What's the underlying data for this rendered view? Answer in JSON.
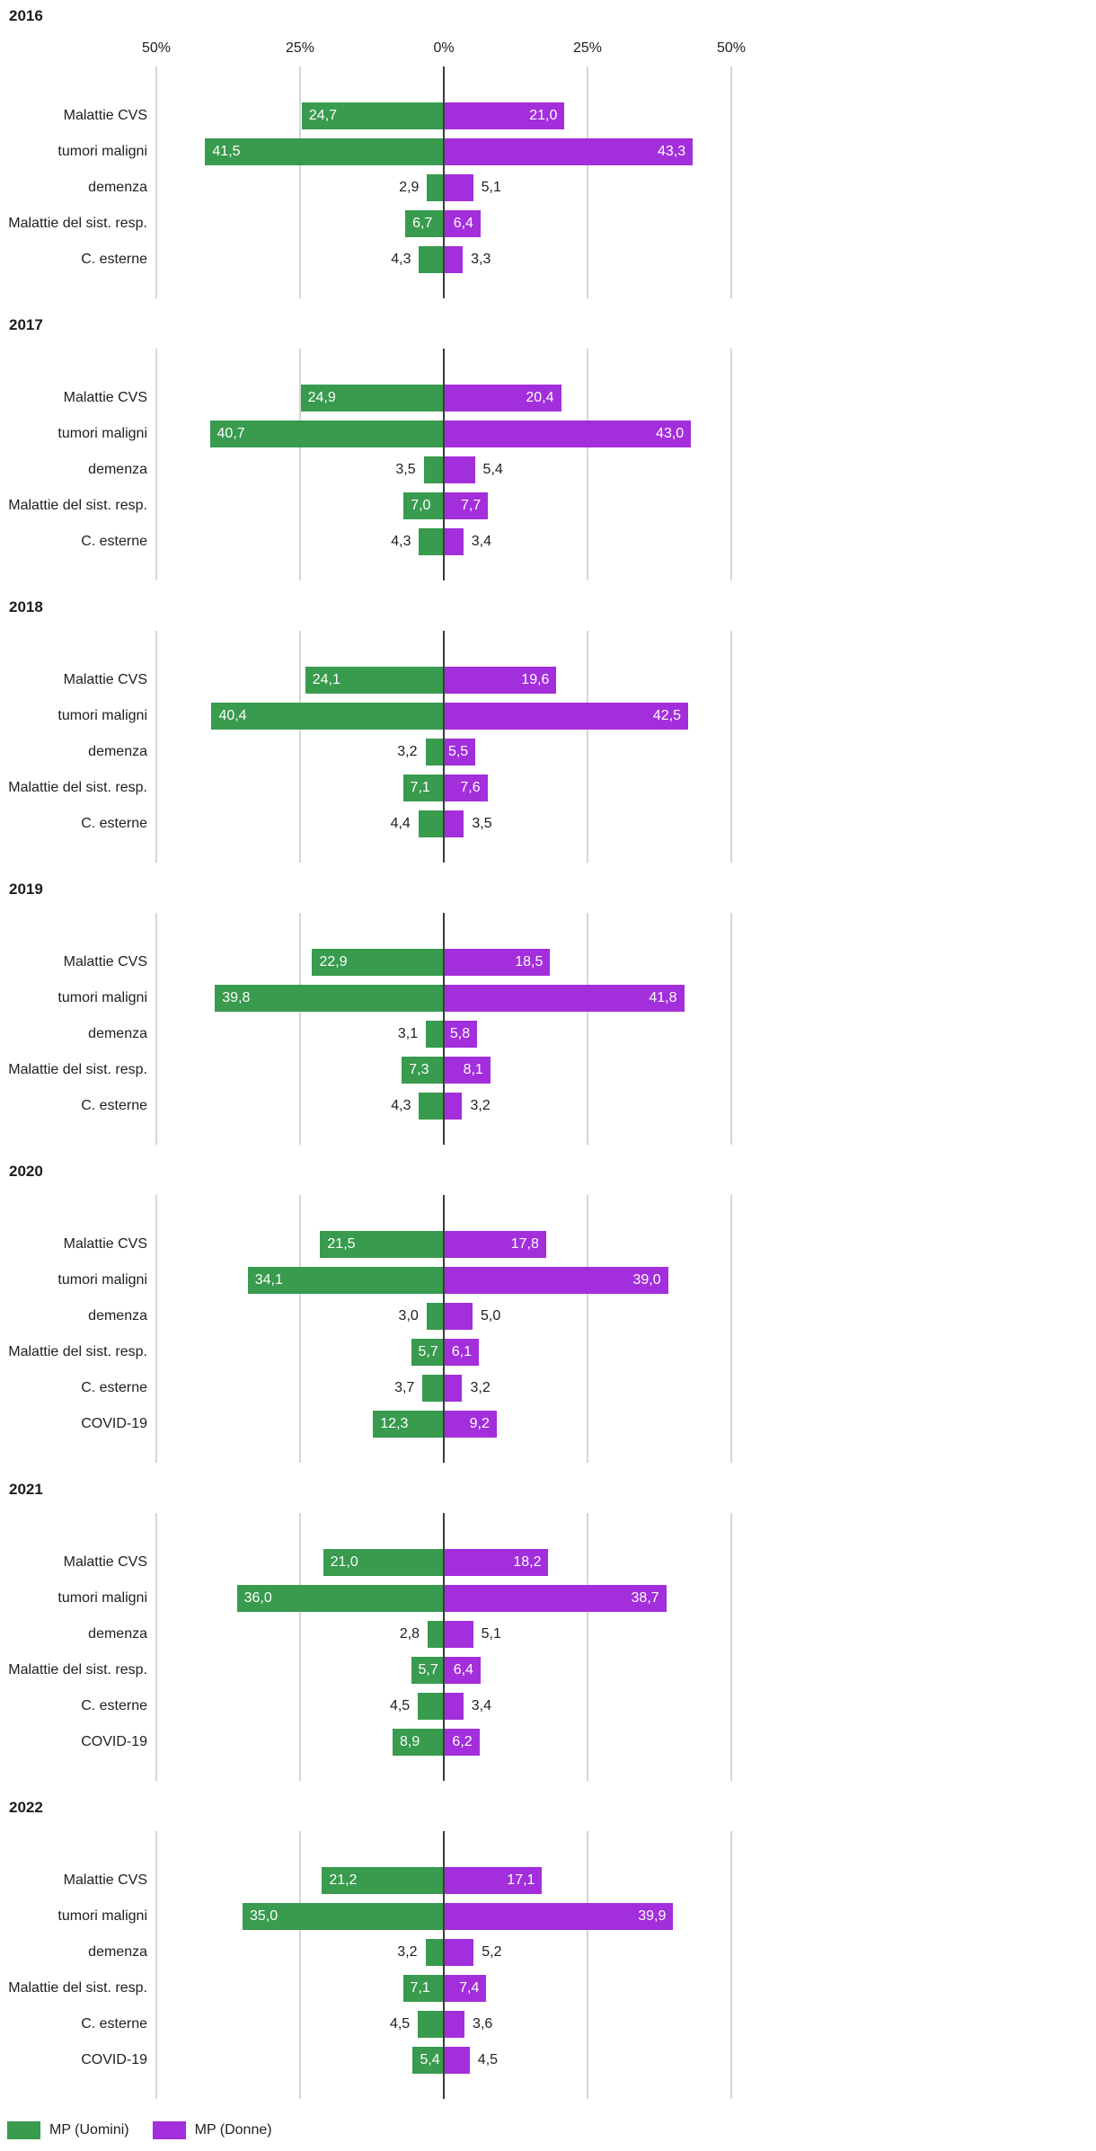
{
  "colors": {
    "men": "#389B4E",
    "women": "#A32EDB",
    "gridline": "#d6d6d6",
    "center_axis": "#3a3a3a"
  },
  "axis": {
    "tick_labels": [
      "50%",
      "25%",
      "0%",
      "25%",
      "50%"
    ],
    "tick_values": [
      -50,
      -25,
      0,
      25,
      50
    ]
  },
  "legend": {
    "items": [
      {
        "label": "MP (Uomini)",
        "color": "#389B4E",
        "series": "men"
      },
      {
        "label": "MP (Donne)",
        "color": "#A32EDB",
        "series": "women"
      }
    ]
  },
  "chart_data": [
    {
      "type": "bar",
      "variant": "diverging-horizontal",
      "title": "2016",
      "xlim": [
        -50,
        50
      ],
      "show_axis_labels": true,
      "categories": [
        "Malattie CVS",
        "tumori maligni",
        "demenza",
        "Malattie del sist. resp.",
        "C. esterne"
      ],
      "series": [
        {
          "name": "MP (Uomini)",
          "values": [
            24.7,
            41.5,
            2.9,
            6.7,
            4.3
          ]
        },
        {
          "name": "MP (Donne)",
          "values": [
            21.0,
            43.3,
            5.1,
            6.4,
            3.3
          ]
        }
      ]
    },
    {
      "type": "bar",
      "variant": "diverging-horizontal",
      "title": "2017",
      "xlim": [
        -50,
        50
      ],
      "show_axis_labels": false,
      "categories": [
        "Malattie CVS",
        "tumori maligni",
        "demenza",
        "Malattie del sist. resp.",
        "C. esterne"
      ],
      "series": [
        {
          "name": "MP (Uomini)",
          "values": [
            24.9,
            40.7,
            3.5,
            7.0,
            4.3
          ]
        },
        {
          "name": "MP (Donne)",
          "values": [
            20.4,
            43.0,
            5.4,
            7.7,
            3.4
          ]
        }
      ]
    },
    {
      "type": "bar",
      "variant": "diverging-horizontal",
      "title": "2018",
      "xlim": [
        -50,
        50
      ],
      "show_axis_labels": false,
      "categories": [
        "Malattie CVS",
        "tumori maligni",
        "demenza",
        "Malattie del sist. resp.",
        "C. esterne"
      ],
      "series": [
        {
          "name": "MP (Uomini)",
          "values": [
            24.1,
            40.4,
            3.2,
            7.1,
            4.4
          ]
        },
        {
          "name": "MP (Donne)",
          "values": [
            19.6,
            42.5,
            5.5,
            7.6,
            3.5
          ]
        }
      ]
    },
    {
      "type": "bar",
      "variant": "diverging-horizontal",
      "title": "2019",
      "xlim": [
        -50,
        50
      ],
      "show_axis_labels": false,
      "categories": [
        "Malattie CVS",
        "tumori maligni",
        "demenza",
        "Malattie del sist. resp.",
        "C. esterne"
      ],
      "series": [
        {
          "name": "MP (Uomini)",
          "values": [
            22.9,
            39.8,
            3.1,
            7.3,
            4.3
          ]
        },
        {
          "name": "MP (Donne)",
          "values": [
            18.5,
            41.8,
            5.8,
            8.1,
            3.2
          ]
        }
      ]
    },
    {
      "type": "bar",
      "variant": "diverging-horizontal",
      "title": "2020",
      "xlim": [
        -50,
        50
      ],
      "show_axis_labels": false,
      "categories": [
        "Malattie CVS",
        "tumori maligni",
        "demenza",
        "Malattie del sist. resp.",
        "C. esterne",
        "COVID-19"
      ],
      "series": [
        {
          "name": "MP (Uomini)",
          "values": [
            21.5,
            34.1,
            3.0,
            5.7,
            3.7,
            12.3
          ]
        },
        {
          "name": "MP (Donne)",
          "values": [
            17.8,
            39.0,
            5.0,
            6.1,
            3.2,
            9.2
          ]
        }
      ]
    },
    {
      "type": "bar",
      "variant": "diverging-horizontal",
      "title": "2021",
      "xlim": [
        -50,
        50
      ],
      "show_axis_labels": false,
      "categories": [
        "Malattie CVS",
        "tumori maligni",
        "demenza",
        "Malattie del sist. resp.",
        "C. esterne",
        "COVID-19"
      ],
      "series": [
        {
          "name": "MP (Uomini)",
          "values": [
            21.0,
            36.0,
            2.8,
            5.7,
            4.5,
            8.9
          ]
        },
        {
          "name": "MP (Donne)",
          "values": [
            18.2,
            38.7,
            5.1,
            6.4,
            3.4,
            6.2
          ]
        }
      ]
    },
    {
      "type": "bar",
      "variant": "diverging-horizontal",
      "title": "2022",
      "xlim": [
        -50,
        50
      ],
      "show_axis_labels": false,
      "categories": [
        "Malattie CVS",
        "tumori maligni",
        "demenza",
        "Malattie del sist. resp.",
        "C. esterne",
        "COVID-19"
      ],
      "series": [
        {
          "name": "MP (Uomini)",
          "values": [
            21.2,
            35.0,
            3.2,
            7.1,
            4.5,
            5.4
          ]
        },
        {
          "name": "MP (Donne)",
          "values": [
            17.1,
            39.9,
            5.2,
            7.4,
            3.6,
            4.5
          ]
        }
      ]
    }
  ]
}
